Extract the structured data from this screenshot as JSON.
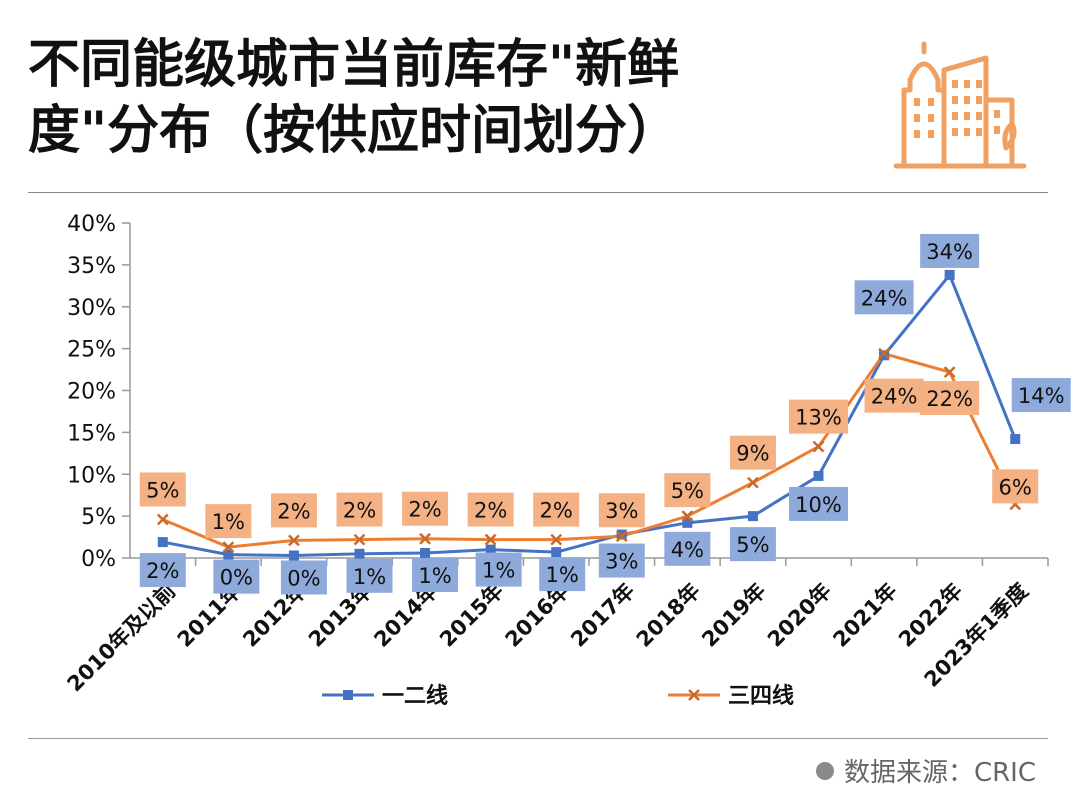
{
  "title_lines": [
    "不同能级城市当前库存\"新鲜",
    "度\"分布（按供应时间划分）"
  ],
  "source_text": "数据来源：CRIC",
  "icon": "city-buildings-icon",
  "chart_data": {
    "type": "line",
    "categories": [
      "2010年及以前",
      "2011年",
      "2012年",
      "2013年",
      "2014年",
      "2015年",
      "2016年",
      "2017年",
      "2018年",
      "2019年",
      "2020年",
      "2021年",
      "2022年",
      "2023年1季度"
    ],
    "y_ticks": [
      "0%",
      "5%",
      "10%",
      "15%",
      "20%",
      "25%",
      "30%",
      "35%",
      "40%"
    ],
    "ylim": [
      0,
      40
    ],
    "legend_position": "bottom",
    "series": [
      {
        "name": "一二线",
        "color": "#4472C4",
        "label_bg": "#8EAADB",
        "marker": "square",
        "values": [
          1.9,
          0.4,
          0.3,
          0.5,
          0.6,
          1.0,
          0.7,
          2.8,
          4.2,
          5.0,
          9.8,
          24.2,
          33.8,
          14.2
        ],
        "labels": [
          "2%",
          "0%",
          "0%",
          "1%",
          "1%",
          "1%",
          "1%",
          "3%",
          "4%",
          "5%",
          "10%",
          "24%",
          "34%",
          "14%"
        ]
      },
      {
        "name": "三四线",
        "color": "#ED7D31",
        "label_bg": "#F4B183",
        "marker": "x",
        "values": [
          4.6,
          1.3,
          2.1,
          2.2,
          2.3,
          2.2,
          2.2,
          2.6,
          5.0,
          9.0,
          13.3,
          24.4,
          22.2,
          6.4
        ],
        "labels": [
          "5%",
          "1%",
          "2%",
          "2%",
          "2%",
          "2%",
          "2%",
          "3%",
          "5%",
          "9%",
          "13%",
          "24%",
          "22%",
          "6%"
        ]
      }
    ]
  }
}
